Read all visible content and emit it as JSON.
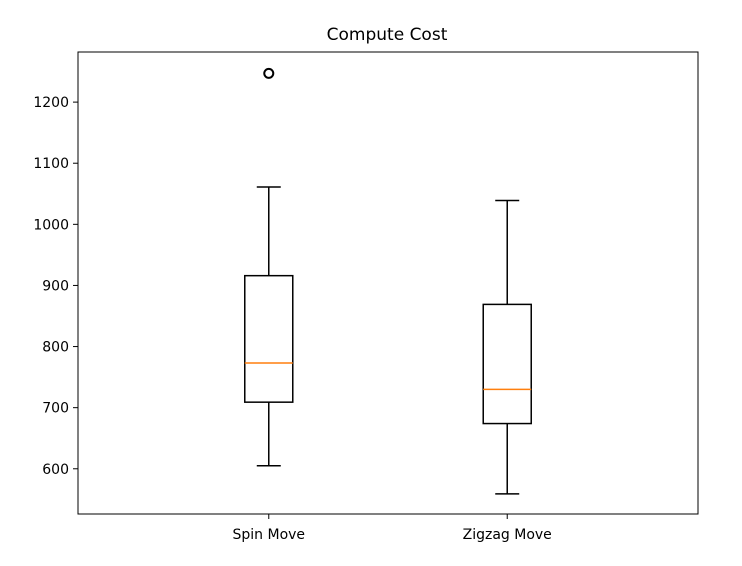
{
  "chart_data": {
    "type": "boxplot",
    "title": "Compute Cost",
    "xlabel": "",
    "ylabel": "",
    "categories": [
      "Spin Move",
      "Zigzag Move"
    ],
    "ylim": [
      526,
      1282
    ],
    "yticks": [
      600,
      700,
      800,
      900,
      1000,
      1100,
      1200
    ],
    "grid": false,
    "boxes": [
      {
        "label": "Spin Move",
        "whisker_low": 605,
        "q1": 709,
        "median": 773,
        "q3": 916,
        "whisker_high": 1061,
        "outliers": [
          1247
        ]
      },
      {
        "label": "Zigzag Move",
        "whisker_low": 559,
        "q1": 674,
        "median": 730,
        "q3": 869,
        "whisker_high": 1039,
        "outliers": []
      }
    ],
    "colors": {
      "box": "#000000",
      "median": "#ff7f0e",
      "outlier": "#000000"
    }
  }
}
